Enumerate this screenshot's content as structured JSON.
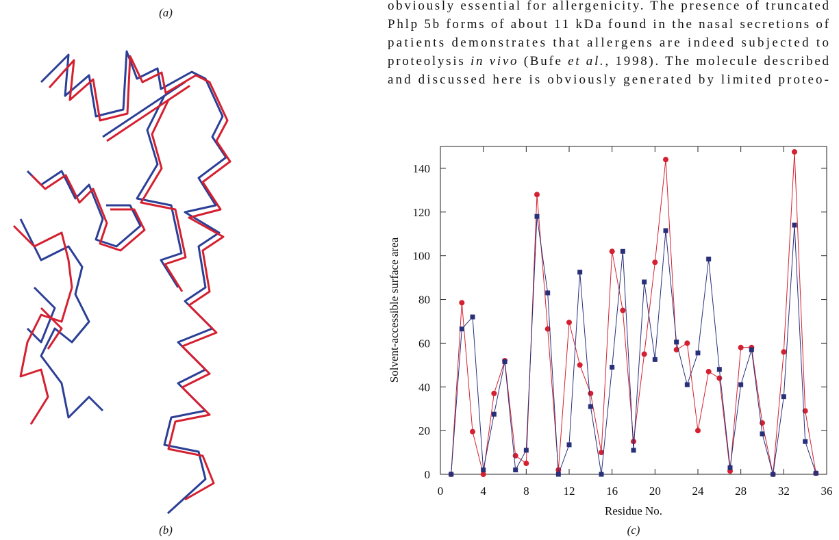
{
  "paragraph": {
    "lines": [
      "obviously essential for allergenicity. The presence of truncated",
      "Phlp 5b forms of about 11 kDa found in the nasal secretions of",
      "patients demonstrates that allergens are indeed subjected to",
      [
        "proteolysis ",
        "in vivo",
        " (Bufe ",
        "et al.",
        ", 1998). The molecule described"
      ],
      "and discussed here is obviously generated by limited proteo-"
    ]
  },
  "panel_labels": {
    "a": "(a)",
    "b": "(b)",
    "c": "(c)"
  },
  "chart_data": {
    "type": "line",
    "x_label": "Residue No.",
    "y_label": "Solvent-accessible surface area",
    "x": [
      1,
      2,
      3,
      4,
      5,
      6,
      7,
      8,
      9,
      10,
      11,
      12,
      13,
      14,
      15,
      16,
      17,
      18,
      19,
      20,
      21,
      22,
      23,
      24,
      25,
      26,
      27,
      28,
      29,
      30,
      31,
      32,
      33,
      34,
      35
    ],
    "series": [
      {
        "color": "#d42030",
        "marker": "circle",
        "values": [
          0,
          78.5,
          19.5,
          0,
          37,
          52,
          8.5,
          5,
          128,
          66.5,
          2,
          69.5,
          50,
          37,
          10,
          102,
          75,
          15,
          55,
          97,
          144,
          57,
          60,
          20,
          47,
          44,
          1.5,
          58,
          58,
          23.5,
          0,
          56,
          147.5,
          29,
          0.5
        ]
      },
      {
        "color": "#28307a",
        "marker": "square",
        "values": [
          0,
          66.5,
          72,
          2,
          27.5,
          51.5,
          2,
          11,
          118,
          83,
          0,
          13.5,
          92.5,
          31,
          0,
          49,
          102,
          11,
          88,
          52.5,
          111.5,
          60.5,
          41,
          55.5,
          98.5,
          48,
          3,
          41,
          57,
          18.5,
          0,
          35.5,
          114,
          15,
          0.5
        ]
      }
    ],
    "xlim": [
      0,
      36
    ],
    "xticks": [
      0,
      4,
      8,
      12,
      16,
      20,
      24,
      28,
      32,
      36
    ],
    "ylim": [
      0,
      150
    ],
    "yticks": [
      0,
      20,
      40,
      60,
      80,
      100,
      120,
      140
    ]
  }
}
